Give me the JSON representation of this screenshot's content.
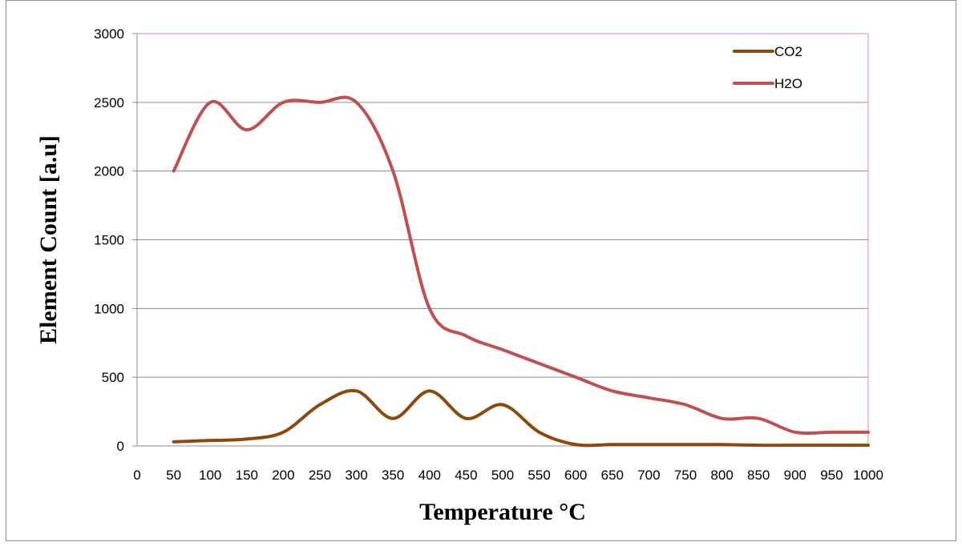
{
  "chart_data": {
    "type": "line",
    "title": "",
    "xlabel": "Temperature °C",
    "ylabel": "Element Count [a.u]",
    "xlim": [
      0,
      1000
    ],
    "ylim": [
      0,
      3000
    ],
    "x_ticks": [
      "0",
      "50",
      "100",
      "150",
      "200",
      "250",
      "300",
      "350",
      "400",
      "450",
      "500",
      "550",
      "600",
      "650",
      "700",
      "750",
      "800",
      "850",
      "900",
      "950",
      "1000"
    ],
    "y_ticks": [
      "0",
      "500",
      "1000",
      "1500",
      "2000",
      "2500",
      "3000"
    ],
    "grid": "horizontal",
    "legend_position": "top-right",
    "x": [
      50,
      100,
      150,
      200,
      250,
      300,
      350,
      400,
      450,
      500,
      550,
      600,
      650,
      700,
      750,
      800,
      850,
      900,
      950,
      1000
    ],
    "series": [
      {
        "name": "CO2",
        "color": "#8b4a0c",
        "values": [
          30,
          40,
          50,
          100,
          300,
          400,
          200,
          400,
          200,
          300,
          100,
          10,
          10,
          10,
          10,
          10,
          5,
          5,
          5,
          5
        ]
      },
      {
        "name": "H2O",
        "color": "#c0504d",
        "values": [
          2000,
          2500,
          2300,
          2500,
          2500,
          2500,
          2000,
          1000,
          800,
          700,
          600,
          500,
          400,
          350,
          300,
          200,
          200,
          100,
          100,
          100
        ]
      }
    ]
  }
}
